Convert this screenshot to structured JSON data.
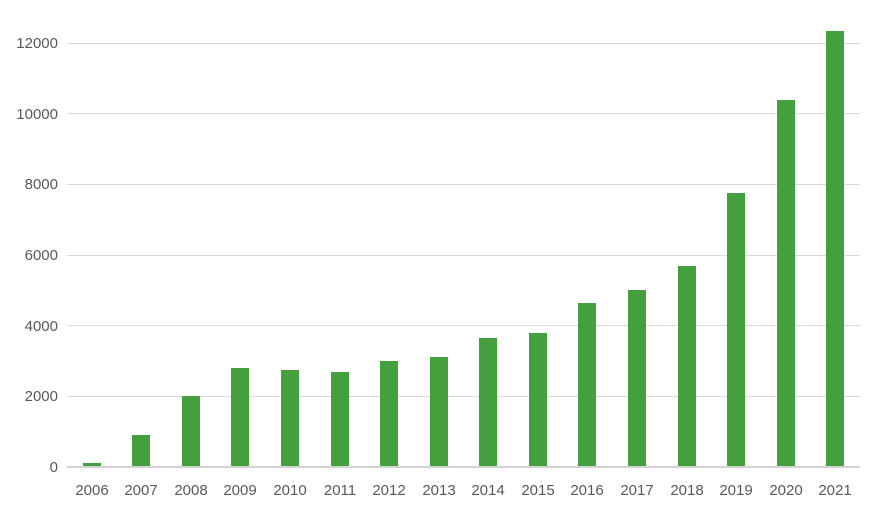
{
  "chart_data": {
    "type": "bar",
    "title": "",
    "xlabel": "",
    "ylabel": "",
    "legend": "none",
    "grid": true,
    "categories": [
      "2006",
      "2007",
      "2008",
      "2009",
      "2010",
      "2011",
      "2012",
      "2013",
      "2014",
      "2015",
      "2016",
      "2017",
      "2018",
      "2019",
      "2020",
      "2021"
    ],
    "values": [
      100,
      900,
      2000,
      2800,
      2750,
      2700,
      3000,
      3100,
      3650,
      3800,
      4650,
      5000,
      5700,
      7750,
      10400,
      12350
    ],
    "y_axis": {
      "min": 0,
      "max": 12000,
      "step": 2000,
      "tick_labels": [
        "0",
        "2000",
        "4000",
        "6000",
        "8000",
        "10000",
        "12000"
      ]
    },
    "colors": {
      "bar": "#43a03c",
      "gridline": "#d9d9d9",
      "axis_line": "#d3d3d3",
      "tick_label": "#595959",
      "background": "#ffffff"
    }
  }
}
